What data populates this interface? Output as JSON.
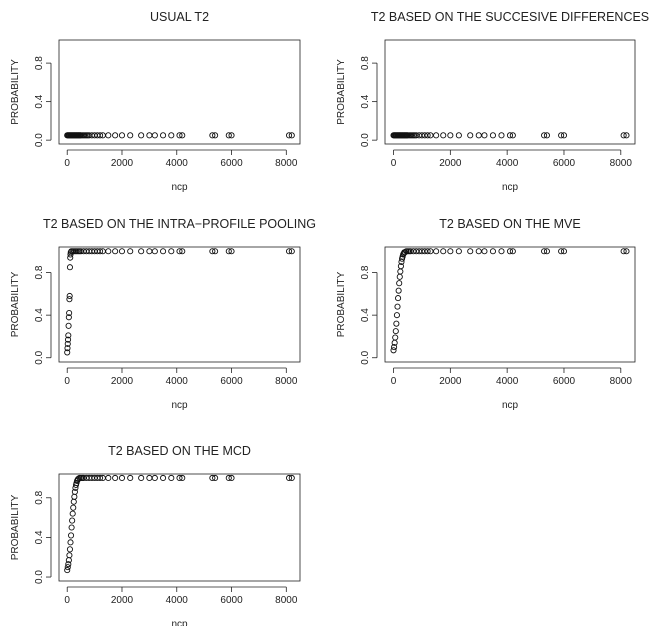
{
  "chart_data": [
    {
      "type": "scatter",
      "title": "USUAL T2",
      "xlabel": "ncp",
      "ylabel": "PROBABILITY",
      "xticks": [
        "0",
        "2000",
        "4000",
        "6000",
        "8000"
      ],
      "yticks": [
        "0.0",
        "0.4",
        "0.8"
      ],
      "x": [
        0,
        25,
        50,
        75,
        100,
        125,
        150,
        175,
        200,
        225,
        250,
        275,
        300,
        325,
        350,
        375,
        400,
        425,
        450,
        475,
        500,
        550,
        600,
        650,
        700,
        750,
        800,
        900,
        1000,
        1100,
        1200,
        1300,
        1500,
        1750,
        2000,
        2300,
        2700,
        3000,
        3200,
        3500,
        3800,
        4100,
        4200,
        5300,
        5400,
        5900,
        6000,
        8100,
        8200
      ],
      "y": [
        0.05,
        0.05,
        0.05,
        0.05,
        0.05,
        0.05,
        0.05,
        0.05,
        0.05,
        0.05,
        0.05,
        0.05,
        0.05,
        0.05,
        0.05,
        0.05,
        0.05,
        0.05,
        0.05,
        0.05,
        0.05,
        0.05,
        0.05,
        0.05,
        0.05,
        0.05,
        0.05,
        0.05,
        0.05,
        0.05,
        0.05,
        0.05,
        0.05,
        0.05,
        0.05,
        0.05,
        0.05,
        0.05,
        0.05,
        0.05,
        0.05,
        0.05,
        0.05,
        0.05,
        0.05,
        0.05,
        0.05,
        0.05,
        0.05
      ]
    },
    {
      "type": "scatter",
      "title": "T2 BASED ON THE SUCCESIVE DIFFERENCES",
      "xlabel": "ncp",
      "ylabel": "PROBABILITY",
      "xticks": [
        "0",
        "2000",
        "4000",
        "6000",
        "8000"
      ],
      "yticks": [
        "0.0",
        "0.4",
        "0.8"
      ],
      "x": [
        0,
        25,
        50,
        75,
        100,
        125,
        150,
        175,
        200,
        225,
        250,
        275,
        300,
        325,
        350,
        375,
        400,
        425,
        450,
        475,
        500,
        550,
        600,
        650,
        700,
        750,
        800,
        900,
        1000,
        1100,
        1200,
        1300,
        1500,
        1750,
        2000,
        2300,
        2700,
        3000,
        3200,
        3500,
        3800,
        4100,
        4200,
        5300,
        5400,
        5900,
        6000,
        8100,
        8200
      ],
      "y": [
        0.05,
        0.05,
        0.05,
        0.05,
        0.05,
        0.05,
        0.05,
        0.05,
        0.05,
        0.05,
        0.05,
        0.05,
        0.05,
        0.05,
        0.05,
        0.05,
        0.05,
        0.05,
        0.05,
        0.05,
        0.05,
        0.05,
        0.05,
        0.05,
        0.05,
        0.05,
        0.05,
        0.05,
        0.05,
        0.05,
        0.05,
        0.05,
        0.05,
        0.05,
        0.05,
        0.05,
        0.05,
        0.05,
        0.05,
        0.05,
        0.05,
        0.05,
        0.05,
        0.05,
        0.05,
        0.05,
        0.05,
        0.05,
        0.05
      ]
    },
    {
      "type": "scatter",
      "title": "T2 BASED ON THE INTRA−PROFILE POOLING",
      "xlabel": "ncp",
      "ylabel": "PROBABILITY",
      "xticks": [
        "0",
        "2000",
        "4000",
        "6000",
        "8000"
      ],
      "yticks": [
        "0.0",
        "0.4",
        "0.8"
      ],
      "x": [
        0,
        10,
        20,
        30,
        40,
        50,
        60,
        70,
        80,
        90,
        100,
        110,
        120,
        130,
        150,
        200,
        250,
        300,
        350,
        400,
        450,
        500,
        600,
        700,
        800,
        900,
        1000,
        1100,
        1200,
        1300,
        1500,
        1750,
        2000,
        2300,
        2700,
        3000,
        3200,
        3500,
        3800,
        4100,
        4200,
        5300,
        5400,
        5900,
        6000,
        8100,
        8200
      ],
      "y": [
        0.05,
        0.09,
        0.13,
        0.17,
        0.21,
        0.3,
        0.38,
        0.42,
        0.55,
        0.58,
        0.85,
        0.94,
        0.97,
        0.99,
        1,
        1,
        1,
        1,
        1,
        1,
        1,
        1,
        1,
        1,
        1,
        1,
        1,
        1,
        1,
        1,
        1,
        1,
        1,
        1,
        1,
        1,
        1,
        1,
        1,
        1,
        1,
        1,
        1,
        1,
        1,
        1,
        1
      ]
    },
    {
      "type": "scatter",
      "title": "T2 BASED ON THE MVE",
      "xlabel": "ncp",
      "ylabel": "PROBABILITY",
      "xticks": [
        "0",
        "2000",
        "4000",
        "6000",
        "8000"
      ],
      "yticks": [
        "0.0",
        "0.4",
        "0.8"
      ],
      "x": [
        0,
        20,
        40,
        60,
        80,
        100,
        120,
        140,
        160,
        180,
        200,
        220,
        240,
        260,
        280,
        300,
        320,
        340,
        360,
        380,
        400,
        450,
        500,
        550,
        600,
        700,
        800,
        900,
        1000,
        1100,
        1200,
        1300,
        1500,
        1750,
        2000,
        2300,
        2700,
        3000,
        3200,
        3500,
        3800,
        4100,
        4200,
        5300,
        5400,
        5900,
        6000,
        8100,
        8200
      ],
      "y": [
        0.07,
        0.1,
        0.14,
        0.19,
        0.25,
        0.32,
        0.4,
        0.48,
        0.56,
        0.63,
        0.7,
        0.76,
        0.81,
        0.86,
        0.9,
        0.93,
        0.95,
        0.97,
        0.98,
        0.99,
        0.99,
        1,
        1,
        1,
        1,
        1,
        1,
        1,
        1,
        1,
        1,
        1,
        1,
        1,
        1,
        1,
        1,
        1,
        1,
        1,
        1,
        1,
        1,
        1,
        1,
        1,
        1,
        1,
        1
      ]
    },
    {
      "type": "scatter",
      "title": "T2 BASED ON THE MCD",
      "xlabel": "ncp",
      "ylabel": "PROBABILITY",
      "xticks": [
        "0",
        "2000",
        "4000",
        "6000",
        "8000"
      ],
      "yticks": [
        "0.0",
        "0.4",
        "0.8"
      ],
      "x": [
        0,
        20,
        40,
        60,
        80,
        100,
        120,
        140,
        160,
        180,
        200,
        220,
        240,
        260,
        280,
        300,
        320,
        340,
        360,
        380,
        400,
        450,
        500,
        550,
        600,
        700,
        800,
        900,
        1000,
        1100,
        1200,
        1300,
        1500,
        1750,
        2000,
        2300,
        2700,
        3000,
        3200,
        3500,
        3800,
        4100,
        4200,
        5300,
        5400,
        5900,
        6000,
        8100,
        8200
      ],
      "y": [
        0.07,
        0.1,
        0.13,
        0.17,
        0.22,
        0.28,
        0.35,
        0.42,
        0.5,
        0.57,
        0.64,
        0.7,
        0.76,
        0.81,
        0.86,
        0.9,
        0.93,
        0.95,
        0.97,
        0.98,
        0.99,
        1,
        1,
        1,
        1,
        1,
        1,
        1,
        1,
        1,
        1,
        1,
        1,
        1,
        1,
        1,
        1,
        1,
        1,
        1,
        1,
        1,
        1,
        1,
        1,
        1,
        1,
        1,
        1
      ]
    }
  ]
}
